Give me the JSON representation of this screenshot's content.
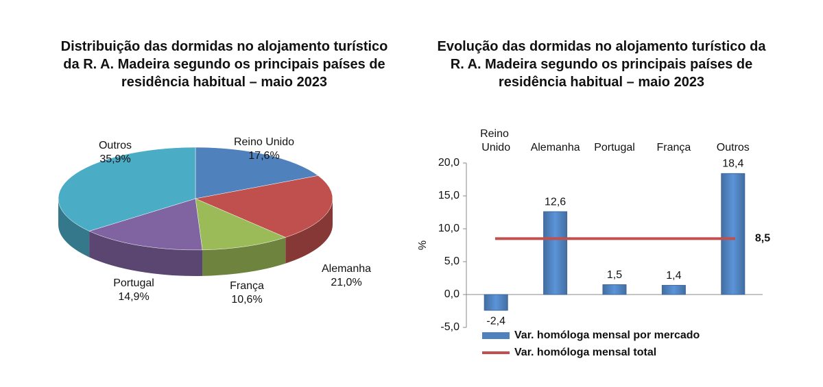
{
  "chart_data": [
    {
      "type": "pie",
      "title": "Distribuição das dormidas no alojamento turístico da R. A. Madeira segundo os principais países de residência habitual – maio 2023",
      "categories": [
        "Reino Unido",
        "Alemanha",
        "França",
        "Portugal",
        "Outros"
      ],
      "values": [
        17.6,
        21.0,
        10.6,
        14.9,
        35.9
      ],
      "value_labels": [
        "17,6%",
        "21,0%",
        "10,6%",
        "14,9%",
        "35,9%"
      ],
      "colors": [
        "#4f81bd",
        "#c0504d",
        "#9bbb59",
        "#8064a2",
        "#4bacc6"
      ]
    },
    {
      "type": "bar",
      "title": "Evolução das dormidas no alojamento turístico da R. A. Madeira segundo os principais países de residência habitual – maio 2023",
      "ylabel": "%",
      "categories": [
        "Reino Unido",
        "Alemanha",
        "Portugal",
        "França",
        "Outros"
      ],
      "series": [
        {
          "name": "Var. homóloga mensal por mercado",
          "color": "#4f81bd",
          "values": [
            -2.4,
            12.6,
            1.5,
            1.4,
            18.4
          ],
          "value_labels": [
            "-2,4",
            "12,6",
            "1,5",
            "1,4",
            "18,4"
          ]
        }
      ],
      "lines": [
        {
          "name": "Var. homóloga mensal total",
          "color": "#c0504d",
          "value": 8.5,
          "value_label": "8,5"
        }
      ],
      "ylim": [
        -5,
        20
      ],
      "yticks": [
        {
          "value": -5,
          "label": "-5,0"
        },
        {
          "value": 0,
          "label": "0,0"
        },
        {
          "value": 5,
          "label": "5,0"
        },
        {
          "value": 10,
          "label": "10,0"
        },
        {
          "value": 15,
          "label": "15,0"
        },
        {
          "value": 20,
          "label": "20,0"
        }
      ]
    }
  ]
}
